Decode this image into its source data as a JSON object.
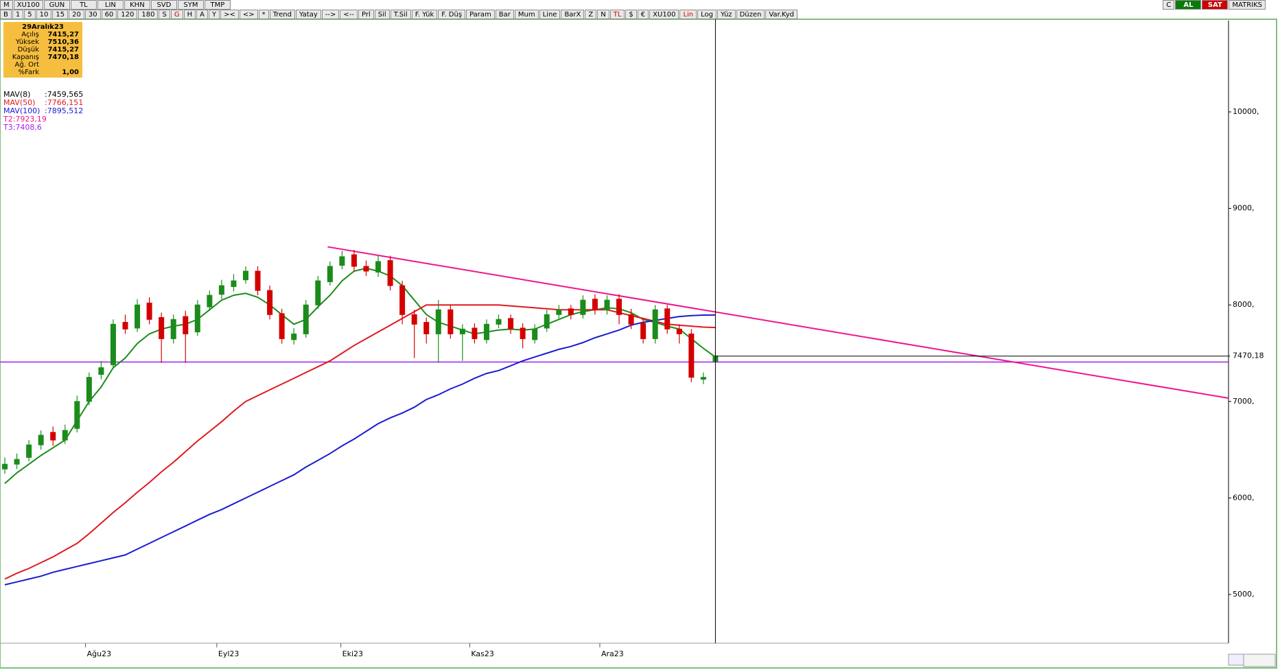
{
  "toolbar": {
    "row1_left": [
      "M",
      "XU100",
      "GUN",
      "TL",
      "LIN",
      "KHN",
      "SVD",
      "SYM",
      "TMP"
    ],
    "row1_right": [
      "C",
      "AL",
      "SAT",
      "MATRIKS"
    ],
    "row2": [
      "B",
      "1",
      "5",
      "10",
      "15",
      "20",
      "30",
      "60",
      "120",
      "180",
      "S",
      "G",
      "H",
      "A",
      "Y",
      "><",
      "<>",
      "*",
      "Trend",
      "Yatay",
      "-->",
      "<--",
      "Prl",
      "Sil",
      "T.Sil",
      "F. Yük",
      "F. Düş",
      "Param",
      "Bar",
      "Mum",
      "Line",
      "BarX",
      "Z",
      "N",
      "TL",
      "$",
      "€",
      "XU100",
      "Lin",
      "Log",
      "Yüz",
      "Düzen",
      "Var.Kyd"
    ]
  },
  "info_box": {
    "title": "29Aralık23",
    "rows": [
      [
        "Açılış",
        "7415,27"
      ],
      [
        "Yüksek",
        "7510,36"
      ],
      [
        "Düşük",
        "7415,27"
      ],
      [
        "Kapanış",
        "7470,18"
      ],
      [
        "Ağ. Ort",
        null
      ],
      [
        "%Fark",
        "1,00"
      ]
    ]
  },
  "chart_data": {
    "type": "candlestick",
    "xlim": [
      -0.4,
      101.6
    ],
    "ylim": [
      4495,
      10946
    ],
    "xticks": [
      {
        "value": 6.7,
        "label": "Ağu23"
      },
      {
        "value": 17.6,
        "label": "Eyl23"
      },
      {
        "value": 27.9,
        "label": "Eki23"
      },
      {
        "value": 38.6,
        "label": "Kas23"
      },
      {
        "value": 49.4,
        "label": "Ara23"
      }
    ],
    "yticks": [
      {
        "value": 5000,
        "label": "5000,"
      },
      {
        "value": 6000,
        "label": "6000,"
      },
      {
        "value": 7000,
        "label": "7000,"
      },
      {
        "value": 8000,
        "label": "8000,"
      },
      {
        "value": 9000,
        "label": "9000,"
      },
      {
        "value": 10000,
        "label": "10000,"
      }
    ],
    "up_color": "#1b8c1b",
    "down_color": "#d40000",
    "candles": {
      "open": [
        6300,
        6350,
        6420,
        6550,
        6680,
        6600,
        6720,
        7000,
        7280,
        7380,
        7820,
        7760,
        8020,
        7870,
        7650,
        7880,
        7720,
        7980,
        8110,
        8190,
        8260,
        8350,
        8150,
        7910,
        7640,
        7700,
        8000,
        8240,
        8410,
        8520,
        8400,
        8340,
        8460,
        8200,
        7900,
        7820,
        7700,
        7950,
        7700,
        7760,
        7640,
        7800,
        7860,
        7760,
        7640,
        7760,
        7900,
        7960,
        7900,
        8060,
        7950,
        8060,
        7900,
        7810,
        7650,
        7960,
        7750,
        7700,
        7230,
        7415.27
      ],
      "high": [
        6420,
        6460,
        6600,
        6700,
        6740,
        6760,
        7060,
        7300,
        7420,
        7850,
        7900,
        8060,
        8080,
        7920,
        7900,
        7940,
        8050,
        8150,
        8260,
        8320,
        8400,
        8400,
        8200,
        7960,
        7760,
        8050,
        8300,
        8450,
        8560,
        8570,
        8460,
        8510,
        8510,
        8250,
        7950,
        7870,
        8050,
        8000,
        7800,
        7810,
        7850,
        7900,
        7900,
        7810,
        7800,
        7950,
        8000,
        8000,
        8100,
        8110,
        8100,
        8110,
        7960,
        7860,
        8000,
        8000,
        7800,
        7750,
        7300,
        7510.36
      ],
      "low": [
        6250,
        6300,
        6380,
        6500,
        6540,
        6560,
        6680,
        6960,
        7230,
        7340,
        7700,
        7720,
        7800,
        7400,
        7600,
        7400,
        7680,
        7940,
        8060,
        8140,
        8220,
        8100,
        7850,
        7600,
        7590,
        7660,
        7960,
        8200,
        8370,
        8350,
        8300,
        8290,
        8150,
        7800,
        7450,
        7600,
        7400,
        7650,
        7420,
        7600,
        7600,
        7760,
        7700,
        7550,
        7600,
        7720,
        7860,
        7850,
        7860,
        7900,
        7900,
        7800,
        7750,
        7600,
        7600,
        7700,
        7600,
        7200,
        7180,
        7415.27
      ],
      "close": [
        6350,
        6400,
        6550,
        6650,
        6600,
        6700,
        7000,
        7250,
        7350,
        7800,
        7750,
        8000,
        7850,
        7650,
        7850,
        7700,
        8000,
        8100,
        8200,
        8250,
        8350,
        8150,
        7900,
        7650,
        7700,
        8000,
        8250,
        8400,
        8500,
        8400,
        8350,
        8450,
        8200,
        7900,
        7800,
        7700,
        7950,
        7700,
        7750,
        7650,
        7800,
        7850,
        7750,
        7650,
        7750,
        7900,
        7950,
        7900,
        8050,
        7950,
        8050,
        7900,
        7800,
        7650,
        7950,
        7750,
        7700,
        7250,
        7250,
        7470.18
      ]
    },
    "series": [
      {
        "name": "MAV(8)",
        "label": ":7459,565",
        "color": "#1b8c1b",
        "values": [
          6150,
          6260,
          6350,
          6440,
          6520,
          6600,
          6800,
          7000,
          7150,
          7350,
          7450,
          7600,
          7700,
          7750,
          7780,
          7800,
          7850,
          7950,
          8050,
          8100,
          8120,
          8080,
          8000,
          7900,
          7800,
          7850,
          7980,
          8100,
          8250,
          8350,
          8380,
          8350,
          8300,
          8200,
          8050,
          7900,
          7820,
          7780,
          7740,
          7700,
          7720,
          7740,
          7750,
          7740,
          7750,
          7800,
          7850,
          7900,
          7930,
          7950,
          7970,
          7960,
          7920,
          7850,
          7820,
          7780,
          7750,
          7650,
          7550,
          7459.565
        ]
      },
      {
        "name": "MAV(50)",
        "label": ":7766,151",
        "color": "#e0191e",
        "values": [
          5160,
          5220,
          5270,
          5330,
          5390,
          5460,
          5530,
          5630,
          5740,
          5850,
          5950,
          6060,
          6160,
          6270,
          6370,
          6480,
          6590,
          6690,
          6790,
          6900,
          7000,
          7060,
          7120,
          7180,
          7240,
          7300,
          7360,
          7420,
          7500,
          7580,
          7650,
          7720,
          7790,
          7860,
          7930,
          8000,
          8000,
          8000,
          8000,
          8000,
          8000,
          8000,
          7990,
          7980,
          7970,
          7960,
          7950,
          7950,
          7950,
          7950,
          7950,
          7920,
          7890,
          7860,
          7830,
          7800,
          7790,
          7780,
          7770,
          7766.151
        ]
      },
      {
        "name": "MAV(100)",
        "label": ":7895,512",
        "color": "#1a1ad6",
        "values": [
          5100,
          5130,
          5160,
          5190,
          5230,
          5260,
          5290,
          5320,
          5350,
          5380,
          5410,
          5470,
          5530,
          5590,
          5650,
          5710,
          5770,
          5830,
          5880,
          5940,
          6000,
          6060,
          6120,
          6180,
          6240,
          6320,
          6390,
          6460,
          6540,
          6610,
          6690,
          6770,
          6830,
          6880,
          6940,
          7020,
          7070,
          7130,
          7180,
          7240,
          7290,
          7320,
          7370,
          7420,
          7460,
          7500,
          7540,
          7570,
          7610,
          7660,
          7700,
          7740,
          7790,
          7820,
          7840,
          7860,
          7880,
          7890,
          7895,
          7895.512
        ]
      }
    ],
    "trend_line": {
      "name": "T2:7923,19",
      "color": "#f0148c",
      "x": [
        26.8,
        101.6
      ],
      "y": [
        8602,
        7034
      ]
    },
    "level_line": {
      "name": "T3:7408,6",
      "color": "#a020f0",
      "value": 7408.6
    },
    "crosshair": {
      "x": 59,
      "value": 7470.18,
      "label": "7470,18"
    }
  }
}
